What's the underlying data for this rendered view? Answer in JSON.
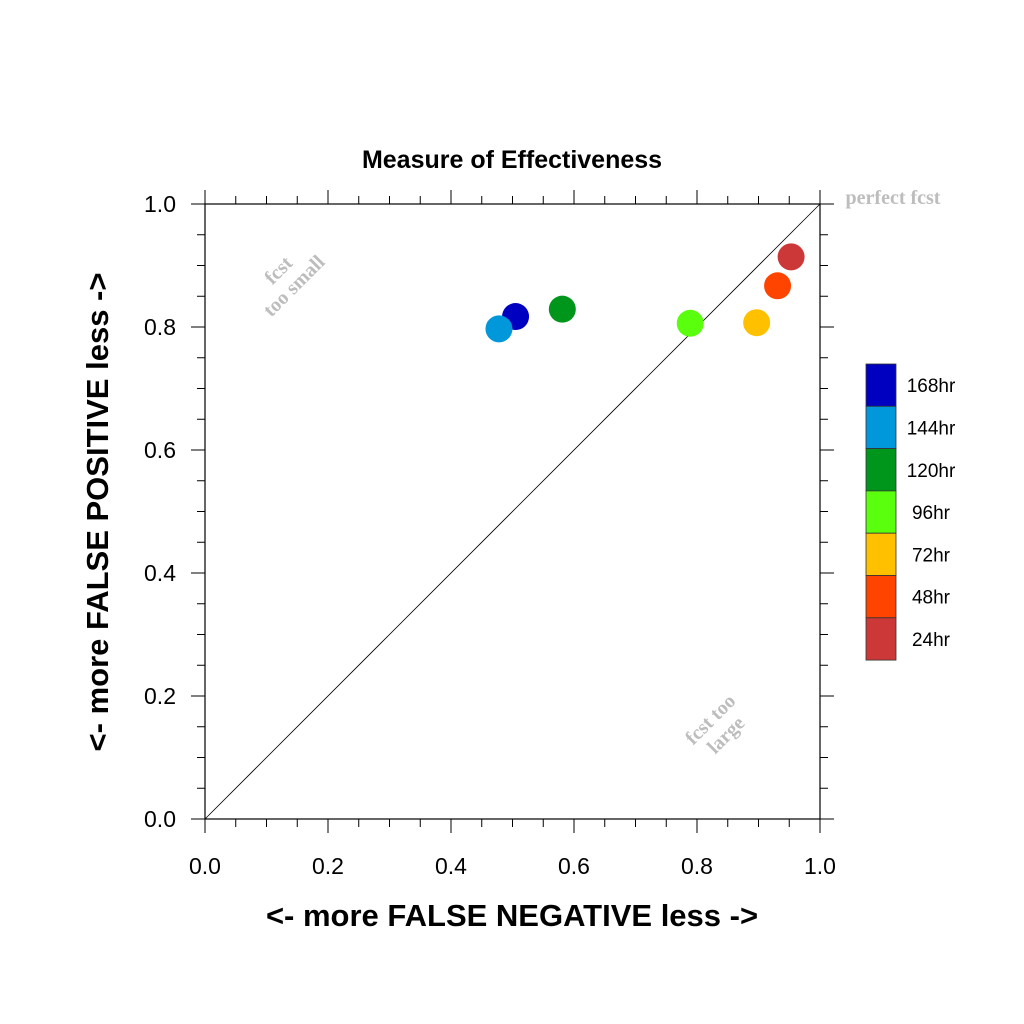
{
  "chart_data": {
    "type": "scatter",
    "title": "Measure of Effectiveness",
    "xlabel": "<- more   FALSE NEGATIVE   less ->",
    "ylabel": "<- more   FALSE POSITIVE   less ->",
    "xlim": [
      0.0,
      1.0
    ],
    "ylim": [
      0.0,
      1.0
    ],
    "xticks": [
      "0.0",
      "0.2",
      "0.4",
      "0.6",
      "0.8",
      "1.0"
    ],
    "yticks": [
      "0.0",
      "0.2",
      "0.4",
      "0.6",
      "0.8",
      "1.0"
    ],
    "grid": false,
    "legend_position": "right",
    "reference_line": "diagonal",
    "annotations": {
      "perfect": "perfect fcst",
      "too_small_1": "fcst",
      "too_small_2": "too small",
      "too_large_1": "fcst too",
      "too_large_2": "large"
    },
    "series": [
      {
        "name": "168hr",
        "color": "#0000c0",
        "x": 0.505,
        "y": 0.817
      },
      {
        "name": "144hr",
        "color": "#0097db",
        "x": 0.478,
        "y": 0.797
      },
      {
        "name": "120hr",
        "color": "#00961b",
        "x": 0.581,
        "y": 0.829
      },
      {
        "name": "96hr",
        "color": "#5aff0e",
        "x": 0.789,
        "y": 0.806
      },
      {
        "name": "72hr",
        "color": "#ffc000",
        "x": 0.897,
        "y": 0.807
      },
      {
        "name": "48hr",
        "color": "#ff4400",
        "x": 0.931,
        "y": 0.867
      },
      {
        "name": "24hr",
        "color": "#cc3737",
        "x": 0.953,
        "y": 0.914
      }
    ]
  }
}
